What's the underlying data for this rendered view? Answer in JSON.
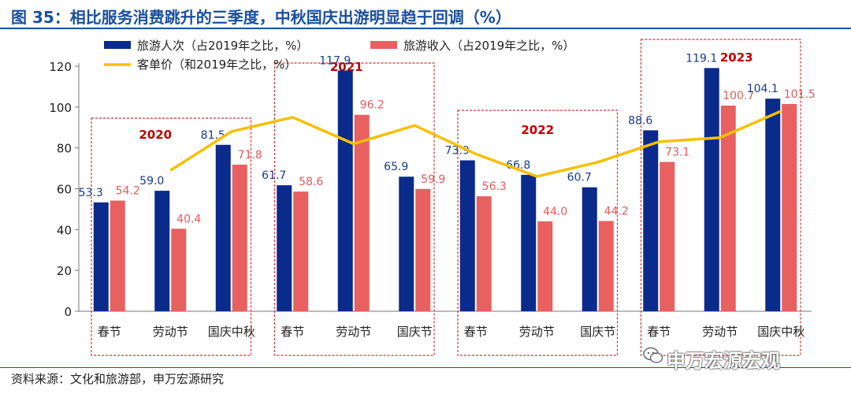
{
  "title": "图 35：相比服务消费跳升的三季度，中秋国庆出游明显趋于回调（%）",
  "source": "资料来源：文化和旅游部，申万宏源研究",
  "watermark": "申万宏源宏观",
  "chart_data": {
    "type": "bar",
    "categories": [
      "春节",
      "劳动节",
      "国庆中秋",
      "春节",
      "劳动节",
      "国庆节",
      "春节",
      "劳动节",
      "国庆节",
      "春节",
      "劳动节",
      "国庆中秋"
    ],
    "groups": [
      {
        "label": "2020",
        "start": 0,
        "end": 2
      },
      {
        "label": "2021",
        "start": 3,
        "end": 5
      },
      {
        "label": "2022",
        "start": 6,
        "end": 8
      },
      {
        "label": "2023",
        "start": 9,
        "end": 11
      }
    ],
    "series": [
      {
        "name": "旅游人次（占2019年之比，%）",
        "type": "bar",
        "color": "#0a2a8c",
        "label_color": "#1a3a8c",
        "values": [
          53.3,
          59.0,
          81.5,
          61.7,
          117.9,
          65.9,
          73.9,
          66.8,
          60.7,
          88.6,
          119.1,
          104.1
        ]
      },
      {
        "name": "旅游收入（占2019年之比，%）",
        "type": "bar",
        "color": "#e86060",
        "label_color": "#e25b5b",
        "values": [
          54.2,
          40.4,
          71.8,
          58.6,
          96.2,
          59.9,
          56.3,
          44.0,
          44.2,
          73.1,
          100.7,
          101.5
        ]
      },
      {
        "name": "客单价（和2019年之比，%）",
        "type": "line",
        "color": "#f5c000",
        "values": [
          null,
          69,
          88,
          95,
          82,
          91,
          77,
          66,
          73,
          83,
          85,
          98
        ]
      }
    ],
    "yticks": [
      0,
      20,
      40,
      60,
      80,
      100,
      120
    ],
    "ylim": [
      0,
      120
    ],
    "legend_position": "top",
    "grid": false
  }
}
